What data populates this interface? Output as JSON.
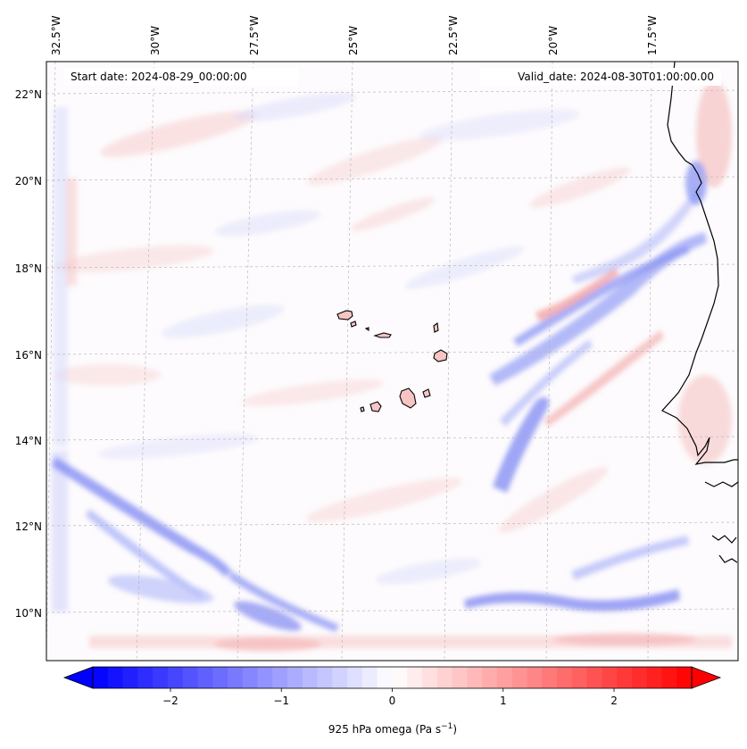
{
  "header": {
    "start_date": "Start date: 2024-08-29_00:00:00",
    "valid_date": "Valid_date: 2024-08-30T01:00:00.00"
  },
  "chart_data": {
    "type": "heatmap",
    "variable": "925 hPa omega",
    "units_label": "925 hPa omega (Pa s",
    "units_exponent": "−1",
    "units_close": ")",
    "lon_ticks": [
      "32.5°W",
      "30°W",
      "27.5°W",
      "25°W",
      "22.5°W",
      "20°W",
      "17.5°W"
    ],
    "lon_values": [
      -32.5,
      -30,
      -27.5,
      -25,
      -22.5,
      -20,
      -17.5
    ],
    "lat_ticks": [
      "22°N",
      "20°N",
      "18°N",
      "16°N",
      "14°N",
      "12°N",
      "10°N"
    ],
    "lat_values": [
      22,
      20,
      18,
      16,
      14,
      12,
      10
    ],
    "lon_range": [
      -32.6,
      -15.4
    ],
    "lat_range": [
      8.9,
      22.7
    ],
    "colorbar": {
      "range": [
        -2.7,
        2.7
      ],
      "ticks": [
        "−2",
        "−1",
        "0",
        "1",
        "2"
      ],
      "tick_values": [
        -2,
        -1,
        0,
        1,
        2
      ],
      "colormap": "bwr",
      "color_low": "#0000ff",
      "color_mid": "#ffffff",
      "color_high": "#ff0000",
      "extend": "both"
    },
    "gridlines": true,
    "features": [
      "Cape Verde islands",
      "West African coastline"
    ]
  }
}
